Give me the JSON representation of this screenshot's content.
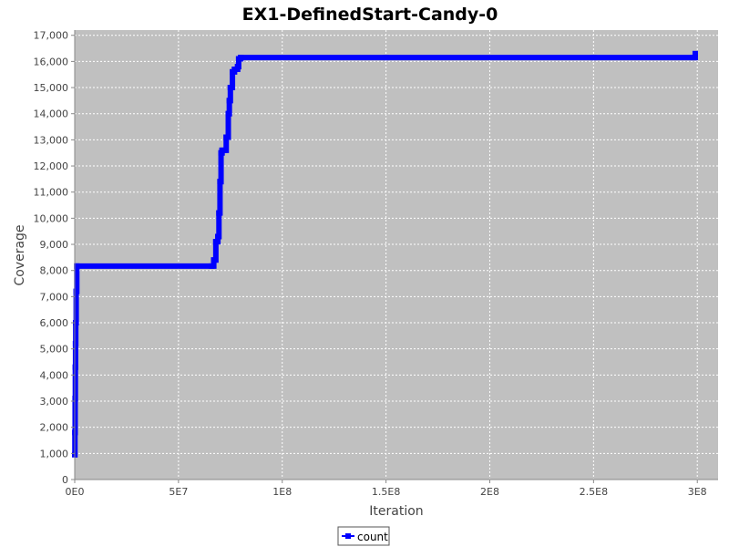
{
  "chart_data": {
    "type": "line",
    "title": "EX1-DefinedStart-Candy-0",
    "xlabel": "Iteration",
    "ylabel": "Coverage",
    "xlim": [
      0,
      310000000
    ],
    "ylim": [
      0,
      17200
    ],
    "grid": true,
    "legend_position": "bottom-center",
    "x_ticks": [
      {
        "value": 0,
        "label": "0E0"
      },
      {
        "value": 50000000,
        "label": "5E7"
      },
      {
        "value": 100000000,
        "label": "1E8"
      },
      {
        "value": 150000000,
        "label": "1.5E8"
      },
      {
        "value": 200000000,
        "label": "2E8"
      },
      {
        "value": 250000000,
        "label": "2.5E8"
      },
      {
        "value": 300000000,
        "label": "3E8"
      }
    ],
    "y_ticks": [
      {
        "value": 0,
        "label": "0"
      },
      {
        "value": 1000,
        "label": "1,000"
      },
      {
        "value": 2000,
        "label": "2,000"
      },
      {
        "value": 3000,
        "label": "3,000"
      },
      {
        "value": 4000,
        "label": "4,000"
      },
      {
        "value": 5000,
        "label": "5,000"
      },
      {
        "value": 6000,
        "label": "6,000"
      },
      {
        "value": 7000,
        "label": "7,000"
      },
      {
        "value": 8000,
        "label": "8,000"
      },
      {
        "value": 9000,
        "label": "9,000"
      },
      {
        "value": 10000,
        "label": "10,000"
      },
      {
        "value": 11000,
        "label": "11,000"
      },
      {
        "value": 12000,
        "label": "12,000"
      },
      {
        "value": 13000,
        "label": "13,000"
      },
      {
        "value": 14000,
        "label": "14,000"
      },
      {
        "value": 15000,
        "label": "15,000"
      },
      {
        "value": 16000,
        "label": "16,000"
      },
      {
        "value": 17000,
        "label": "17,000"
      }
    ],
    "series": [
      {
        "name": "count",
        "color": "#0000ff",
        "x": [
          0,
          100000,
          200000,
          300000,
          400000,
          500000,
          700000,
          1000000,
          66000000,
          67000000,
          68000000,
          69000000,
          69500000,
          70000000,
          70500000,
          71000000,
          72000000,
          73000000,
          74000000,
          74500000,
          75000000,
          76000000,
          77000000,
          78000000,
          78500000,
          79000000,
          80000000,
          150000000,
          250000000,
          298000000,
          299000000
        ],
        "y": [
          950,
          1800,
          3100,
          4300,
          5200,
          6000,
          7200,
          8170,
          8170,
          8400,
          9100,
          9300,
          10200,
          11400,
          12500,
          12600,
          12600,
          13100,
          14000,
          14500,
          15000,
          15600,
          15700,
          15700,
          15800,
          16100,
          16150,
          16150,
          16150,
          16150,
          16300
        ]
      }
    ]
  }
}
